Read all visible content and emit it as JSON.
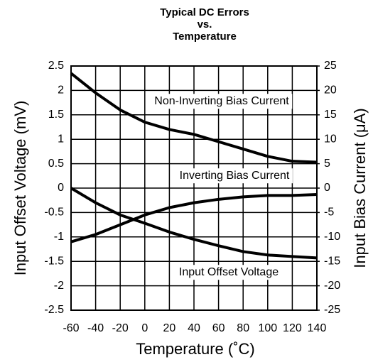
{
  "chart_data": {
    "type": "line",
    "title": [
      "Typical DC Errors",
      "vs.",
      "Temperature"
    ],
    "x_label": "Temperature (˚C)",
    "y_label": "Input Offset Voltage (mV)",
    "y2_label": "Input Bias Current (μA)",
    "x": [
      -60,
      -40,
      -20,
      0,
      20,
      40,
      60,
      80,
      100,
      120,
      140
    ],
    "xlim": [
      -60,
      140
    ],
    "xticks": [
      -60,
      -40,
      -20,
      0,
      20,
      40,
      60,
      80,
      100,
      120,
      140
    ],
    "ylim": [
      -2.5,
      2.5
    ],
    "yticks": [
      2.5,
      2,
      1.5,
      1,
      0.5,
      0,
      -0.5,
      -1,
      -1.5,
      -2,
      -2.5
    ],
    "y2lim": [
      -25,
      25
    ],
    "y2ticks": [
      25,
      20,
      15,
      10,
      5,
      0,
      -5,
      -10,
      -15,
      -20,
      -25
    ],
    "grid": true,
    "series": [
      {
        "name": "Non-Inverting Bias Current",
        "color": "#000000",
        "axis": "y2",
        "values": [
          23.5,
          19.5,
          16,
          13.5,
          12,
          11,
          9.5,
          8,
          6.5,
          5.5,
          5.3
        ]
      },
      {
        "name": "Inverting Bias Current",
        "color": "#000000",
        "axis": "y2",
        "values": [
          -11,
          -9.5,
          -7.5,
          -5.5,
          -4,
          -3,
          -2.3,
          -1.8,
          -1.5,
          -1.5,
          -1.3
        ]
      },
      {
        "name": "Input Offset Voltage",
        "color": "#000000",
        "values": [
          0,
          -0.3,
          -0.55,
          -0.72,
          -0.9,
          -1.05,
          -1.18,
          -1.3,
          -1.37,
          -1.4,
          -1.43
        ]
      }
    ]
  }
}
